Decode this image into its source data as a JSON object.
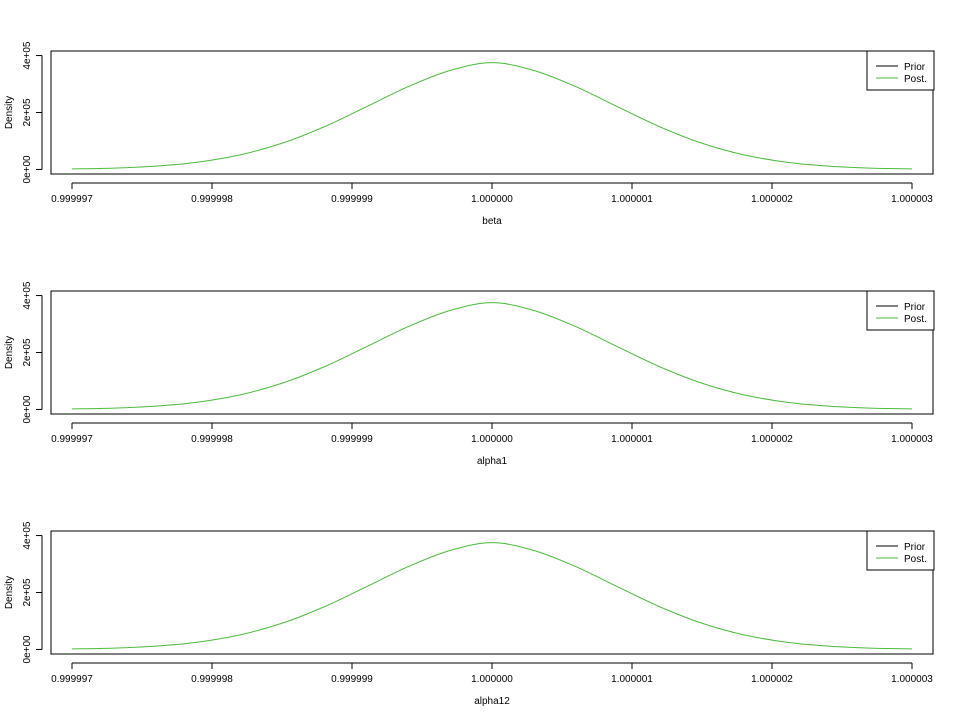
{
  "chart_data": [
    {
      "type": "line",
      "title": "",
      "xlabel": "beta",
      "ylabel": "Density",
      "xlim": [
        0.99999685,
        1.00000315
      ],
      "ylim": [
        -16000,
        416000
      ],
      "x_ticks": [
        0.999997,
        0.999998,
        0.999999,
        1.0,
        1.000001,
        1.000002,
        1.000003
      ],
      "x_tick_labels": [
        "0.999997",
        "0.999998",
        "0.999999",
        "1.000000",
        "1.000001",
        "1.000002",
        "1.000003"
      ],
      "y_ticks": [
        0,
        200000,
        400000
      ],
      "y_tick_labels": [
        "0e+00",
        "2e+05",
        "4e+05"
      ],
      "legend": {
        "position": "top-right",
        "entries": [
          {
            "label": "Prior",
            "color": "#000000"
          },
          {
            "label": "Post.",
            "color": "#4cbb3c"
          }
        ]
      },
      "series": [
        {
          "name": "Post.",
          "color": "#4cbb3c",
          "x": [
            0.999997,
            0.9999973,
            0.9999976,
            0.9999979,
            0.9999982,
            0.9999985,
            0.9999988,
            0.9999991,
            0.9999994,
            0.9999997,
            1.0,
            1.0000003,
            1.0000006,
            1.0000009,
            1.0000012,
            1.0000015,
            1.0000018,
            1.0000021,
            1.0000024,
            1.0000027,
            1.000003
          ],
          "y": [
            1800,
            4800,
            11700,
            25700,
            51200,
            92000,
            149500,
            219400,
            290600,
            347500,
            375000,
            347500,
            290600,
            219400,
            149500,
            92000,
            51200,
            25700,
            11700,
            4800,
            1800
          ]
        },
        {
          "name": "Prior",
          "color": "#000000",
          "x": [],
          "y": []
        }
      ]
    },
    {
      "type": "line",
      "title": "",
      "xlabel": "alpha1",
      "ylabel": "Density",
      "xlim": [
        0.99999685,
        1.00000315
      ],
      "ylim": [
        -16000,
        416000
      ],
      "x_ticks": [
        0.999997,
        0.999998,
        0.999999,
        1.0,
        1.000001,
        1.000002,
        1.000003
      ],
      "x_tick_labels": [
        "0.999997",
        "0.999998",
        "0.999999",
        "1.000000",
        "1.000001",
        "1.000002",
        "1.000003"
      ],
      "y_ticks": [
        0,
        200000,
        400000
      ],
      "y_tick_labels": [
        "0e+00",
        "2e+05",
        "4e+05"
      ],
      "legend": {
        "position": "top-right",
        "entries": [
          {
            "label": "Prior",
            "color": "#000000"
          },
          {
            "label": "Post.",
            "color": "#4cbb3c"
          }
        ]
      },
      "series": [
        {
          "name": "Post.",
          "color": "#4cbb3c",
          "x": [
            0.999997,
            0.9999973,
            0.9999976,
            0.9999979,
            0.9999982,
            0.9999985,
            0.9999988,
            0.9999991,
            0.9999994,
            0.9999997,
            1.0,
            1.0000003,
            1.0000006,
            1.0000009,
            1.0000012,
            1.0000015,
            1.0000018,
            1.0000021,
            1.0000024,
            1.0000027,
            1.000003
          ],
          "y": [
            1800,
            4800,
            11700,
            25700,
            51200,
            92000,
            149500,
            219400,
            290600,
            347500,
            375000,
            347500,
            290600,
            219400,
            149500,
            92000,
            51200,
            25700,
            11700,
            4800,
            1800
          ]
        },
        {
          "name": "Prior",
          "color": "#000000",
          "x": [],
          "y": []
        }
      ]
    },
    {
      "type": "line",
      "title": "",
      "xlabel": "alpha12",
      "ylabel": "Density",
      "xlim": [
        0.99999685,
        1.00000315
      ],
      "ylim": [
        -16000,
        416000
      ],
      "x_ticks": [
        0.999997,
        0.999998,
        0.999999,
        1.0,
        1.000001,
        1.000002,
        1.000003
      ],
      "x_tick_labels": [
        "0.999997",
        "0.999998",
        "0.999999",
        "1.000000",
        "1.000001",
        "1.000002",
        "1.000003"
      ],
      "y_ticks": [
        0,
        200000,
        400000
      ],
      "y_tick_labels": [
        "0e+00",
        "2e+05",
        "4e+05"
      ],
      "legend": {
        "position": "top-right",
        "entries": [
          {
            "label": "Prior",
            "color": "#000000"
          },
          {
            "label": "Post.",
            "color": "#4cbb3c"
          }
        ]
      },
      "series": [
        {
          "name": "Post.",
          "color": "#4cbb3c",
          "x": [
            0.999997,
            0.9999973,
            0.9999976,
            0.9999979,
            0.9999982,
            0.9999985,
            0.9999988,
            0.9999991,
            0.9999994,
            0.9999997,
            1.0,
            1.0000003,
            1.0000006,
            1.0000009,
            1.0000012,
            1.0000015,
            1.0000018,
            1.0000021,
            1.0000024,
            1.0000027,
            1.000003
          ],
          "y": [
            1800,
            4800,
            11700,
            25700,
            51200,
            92000,
            149500,
            219400,
            290600,
            347500,
            375000,
            347500,
            290600,
            219400,
            149500,
            92000,
            51200,
            25700,
            11700,
            4800,
            1800
          ]
        },
        {
          "name": "Prior",
          "color": "#000000",
          "x": [],
          "y": []
        }
      ]
    }
  ]
}
